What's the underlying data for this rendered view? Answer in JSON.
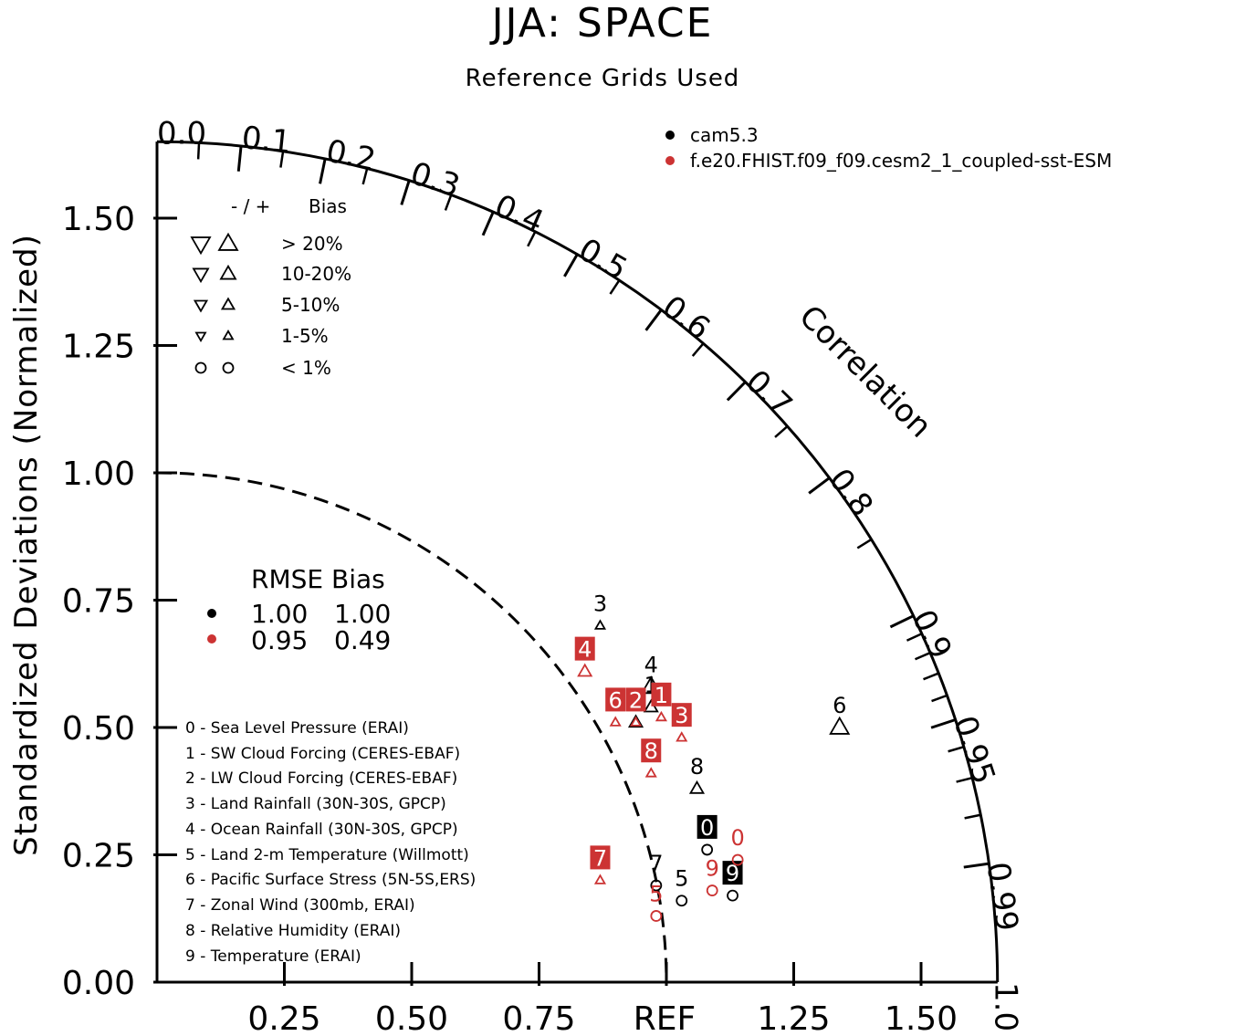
{
  "colors": {
    "model1": "#000000",
    "model2": "#cc3333",
    "box_text": "#ffffff"
  },
  "chart_data": {
    "type": "scatter",
    "subtype": "taylor-diagram",
    "title": "JJA: SPACE",
    "subtitle": "Reference Grids Used",
    "ylabel": "Standardized Deviations (Normalized)",
    "corr_axis_label": "Correlation",
    "ref_label": "REF",
    "std_ticks": [
      "0.00",
      "0.25",
      "0.50",
      "0.75",
      "1.00",
      "1.25",
      "1.50"
    ],
    "x_ticks": [
      "0.25",
      "0.50",
      "0.75",
      "1.25",
      "1.50"
    ],
    "corr_ticks": [
      "0.0",
      "0.1",
      "0.2",
      "0.3",
      "0.4",
      "0.5",
      "0.6",
      "0.7",
      "0.8",
      "0.9",
      "0.95",
      "0.99",
      "1.0"
    ],
    "std_max": 1.65,
    "models": [
      {
        "name": "cam5.3",
        "color": "#000000",
        "rmse": "1.00",
        "bias": "1.00"
      },
      {
        "name": "f.e20.FHIST.f09_f09.cesm2_1_coupled-sst-ESM",
        "color": "#cc3333",
        "rmse": "0.95",
        "bias": "0.49"
      }
    ],
    "bias_legend": {
      "header_sign": "-  /  +",
      "header_label": "Bias",
      "rows": [
        "> 20%",
        "10-20%",
        "5-10%",
        "1-5%",
        "< 1%"
      ]
    },
    "stats_header": "RMSE Bias",
    "variables": [
      "0 - Sea Level Pressure (ERAI)",
      "1 - SW Cloud Forcing (CERES-EBAF)",
      "2 - LW Cloud Forcing (CERES-EBAF)",
      "3 - Land Rainfall (30N-30S, GPCP)",
      "4 - Ocean Rainfall (30N-30S, GPCP)",
      "5 - Land 2-m Temperature (Willmott)",
      "6 - Pacific Surface Stress (5N-5S,ERS)",
      "7 - Zonal Wind (300mb, ERAI)",
      "8 - Relative Humidity (ERAI)",
      "9 - Temperature (ERAI)"
    ],
    "points": [
      {
        "model": 0,
        "var": "0",
        "x": 1.08,
        "y": 0.26,
        "marker": "circle",
        "size": 1
      },
      {
        "model": 0,
        "var": "1",
        "x": 0.97,
        "y": 0.54,
        "marker": "up",
        "size": 2
      },
      {
        "model": 0,
        "var": "2",
        "x": 0.94,
        "y": 0.51,
        "marker": "up",
        "size": 2
      },
      {
        "model": 0,
        "var": "3",
        "x": 0.87,
        "y": 0.7,
        "marker": "up",
        "size": 1
      },
      {
        "model": 0,
        "var": "4",
        "x": 0.97,
        "y": 0.58,
        "marker": "up",
        "size": 3
      },
      {
        "model": 0,
        "var": "5",
        "x": 1.03,
        "y": 0.16,
        "marker": "circle",
        "size": 1
      },
      {
        "model": 0,
        "var": "6",
        "x": 1.34,
        "y": 0.5,
        "marker": "up",
        "size": 3
      },
      {
        "model": 0,
        "var": "7",
        "x": 0.98,
        "y": 0.19,
        "marker": "circle",
        "size": 1
      },
      {
        "model": 0,
        "var": "8",
        "x": 1.06,
        "y": 0.38,
        "marker": "up",
        "size": 2
      },
      {
        "model": 0,
        "var": "9",
        "x": 1.13,
        "y": 0.17,
        "marker": "circle",
        "size": 1
      },
      {
        "model": 1,
        "var": "0",
        "x": 1.14,
        "y": 0.24,
        "marker": "circle",
        "size": 1
      },
      {
        "model": 1,
        "var": "1",
        "x": 0.99,
        "y": 0.52,
        "marker": "up",
        "size": 1
      },
      {
        "model": 1,
        "var": "2",
        "x": 0.94,
        "y": 0.51,
        "marker": "up",
        "size": 1
      },
      {
        "model": 1,
        "var": "3",
        "x": 1.03,
        "y": 0.48,
        "marker": "up",
        "size": 1
      },
      {
        "model": 1,
        "var": "4",
        "x": 0.84,
        "y": 0.61,
        "marker": "up",
        "size": 2
      },
      {
        "model": 1,
        "var": "5",
        "x": 0.98,
        "y": 0.13,
        "marker": "circle",
        "size": 1
      },
      {
        "model": 1,
        "var": "6",
        "x": 0.9,
        "y": 0.51,
        "marker": "up",
        "size": 1
      },
      {
        "model": 1,
        "var": "7",
        "x": 0.87,
        "y": 0.2,
        "marker": "up",
        "size": 1
      },
      {
        "model": 1,
        "var": "8",
        "x": 0.97,
        "y": 0.41,
        "marker": "up",
        "size": 1
      },
      {
        "model": 1,
        "var": "9",
        "x": 1.09,
        "y": 0.18,
        "marker": "circle",
        "size": 1
      }
    ]
  }
}
